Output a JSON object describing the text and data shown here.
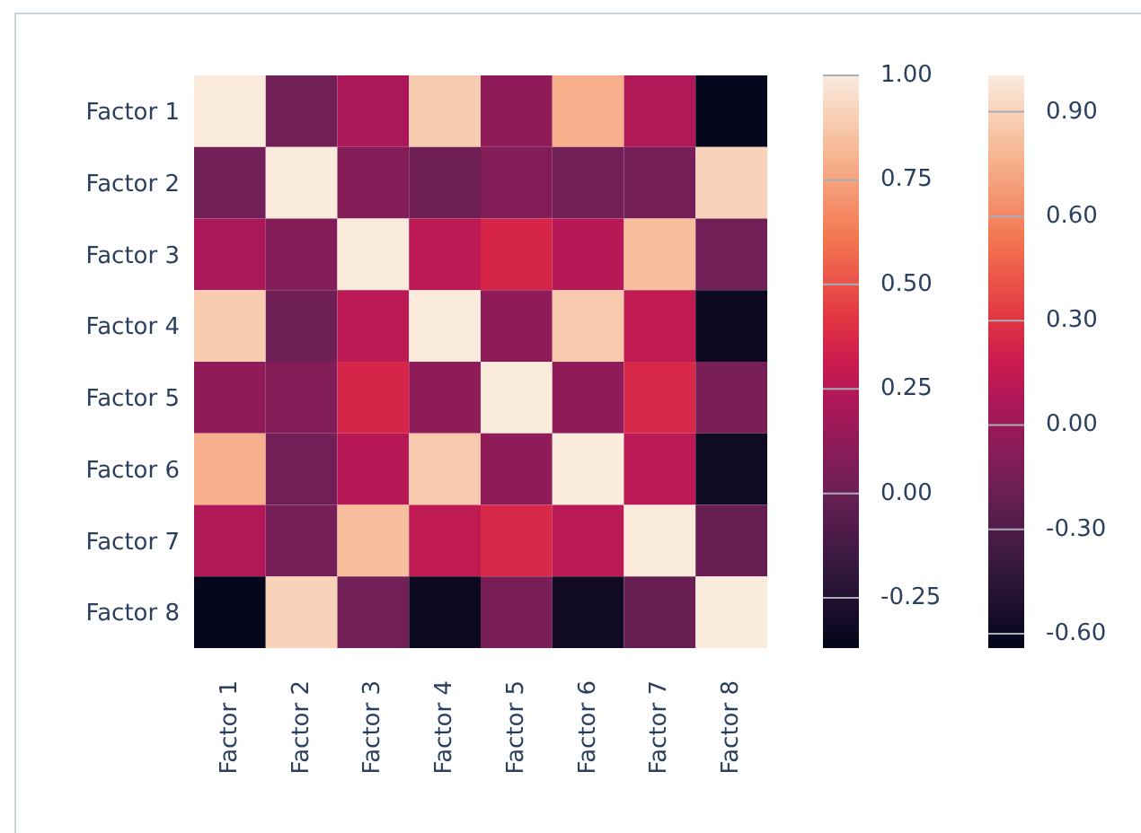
{
  "chart_data": {
    "type": "heatmap",
    "categories": [
      "Factor 1",
      "Factor 2",
      "Factor 3",
      "Factor 4",
      "Factor 5",
      "Factor 6",
      "Factor 7",
      "Factor 8"
    ],
    "y_categories": [
      "Factor 1",
      "Factor 2",
      "Factor 3",
      "Factor 4",
      "Factor 5",
      "Factor 6",
      "Factor 7",
      "Factor 8"
    ],
    "cells": [
      [
        1,
        0.02,
        0.21,
        0.89,
        0.12,
        0.79,
        0.23,
        -0.36
      ],
      [
        0.02,
        1,
        0.08,
        0.01,
        0.08,
        0.02,
        0.04,
        0.91
      ],
      [
        0.21,
        0.08,
        1,
        0.27,
        0.36,
        0.25,
        0.84,
        0.02
      ],
      [
        0.89,
        0.01,
        0.27,
        1,
        0.12,
        0.88,
        0.28,
        -0.34
      ],
      [
        0.12,
        0.08,
        0.36,
        0.12,
        1,
        0.12,
        0.37,
        0.05
      ],
      [
        0.79,
        0.02,
        0.25,
        0.88,
        0.12,
        1,
        0.26,
        -0.32
      ],
      [
        0.23,
        0.04,
        0.84,
        0.28,
        0.37,
        0.26,
        1,
        -0.01
      ],
      [
        -0.36,
        0.91,
        0.02,
        -0.34,
        0.05,
        -0.32,
        -0.01,
        1
      ]
    ],
    "clim": [
      -0.37,
      1.0
    ],
    "cticks": [
      {
        "value": 1,
        "label": "1.00"
      },
      {
        "value": 0.75,
        "label": "0.75"
      },
      {
        "value": 0.5,
        "label": "0.50"
      },
      {
        "value": 0.25,
        "label": "0.25"
      },
      {
        "value": 0,
        "label": "0.00"
      },
      {
        "value": -0.25,
        "label": "-0.25"
      }
    ],
    "annotations": [
      "0.90",
      "0.60",
      "0.30",
      "0.00",
      "-0.30",
      "-0.60"
    ]
  }
}
